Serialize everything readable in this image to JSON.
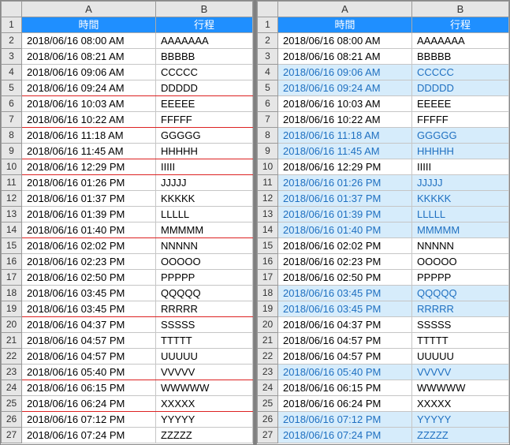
{
  "header": {
    "colA": "時間",
    "colB": "行程"
  },
  "colLabels": [
    "A",
    "B"
  ],
  "rows": [
    {
      "n": 2,
      "time": "2018/06/16 08:00 AM",
      "val": "AAAAAAA",
      "hl": false,
      "sep": false
    },
    {
      "n": 3,
      "time": "2018/06/16 08:21 AM",
      "val": "BBBBB",
      "hl": false,
      "sep": false
    },
    {
      "n": 4,
      "time": "2018/06/16 09:06 AM",
      "val": "CCCCC",
      "hl": true,
      "sep": false
    },
    {
      "n": 5,
      "time": "2018/06/16 09:24 AM",
      "val": "DDDDD",
      "hl": true,
      "sep": true
    },
    {
      "n": 6,
      "time": "2018/06/16 10:03 AM",
      "val": "EEEEE",
      "hl": false,
      "sep": false
    },
    {
      "n": 7,
      "time": "2018/06/16 10:22 AM",
      "val": "FFFFF",
      "hl": false,
      "sep": true
    },
    {
      "n": 8,
      "time": "2018/06/16 11:18 AM",
      "val": "GGGGG",
      "hl": true,
      "sep": false
    },
    {
      "n": 9,
      "time": "2018/06/16 11:45 AM",
      "val": "HHHHH",
      "hl": true,
      "sep": true
    },
    {
      "n": 10,
      "time": "2018/06/16 12:29 PM",
      "val": "IIIII",
      "hl": false,
      "sep": true
    },
    {
      "n": 11,
      "time": "2018/06/16 01:26 PM",
      "val": "JJJJJ",
      "hl": true,
      "sep": false
    },
    {
      "n": 12,
      "time": "2018/06/16 01:37 PM",
      "val": "KKKKK",
      "hl": true,
      "sep": false
    },
    {
      "n": 13,
      "time": "2018/06/16 01:39 PM",
      "val": "LLLLL",
      "hl": true,
      "sep": false
    },
    {
      "n": 14,
      "time": "2018/06/16 01:40 PM",
      "val": "MMMMM",
      "hl": true,
      "sep": true
    },
    {
      "n": 15,
      "time": "2018/06/16 02:02 PM",
      "val": "NNNNN",
      "hl": false,
      "sep": false
    },
    {
      "n": 16,
      "time": "2018/06/16 02:23 PM",
      "val": "OOOOO",
      "hl": false,
      "sep": false
    },
    {
      "n": 17,
      "time": "2018/06/16 02:50 PM",
      "val": "PPPPP",
      "hl": false,
      "sep": false
    },
    {
      "n": 18,
      "time": "2018/06/16 03:45 PM",
      "val": "QQQQQ",
      "hl": true,
      "sep": false
    },
    {
      "n": 19,
      "time": "2018/06/16 03:45 PM",
      "val": "RRRRR",
      "hl": true,
      "sep": true
    },
    {
      "n": 20,
      "time": "2018/06/16 04:37 PM",
      "val": "SSSSS",
      "hl": false,
      "sep": false
    },
    {
      "n": 21,
      "time": "2018/06/16 04:57 PM",
      "val": "TTTTT",
      "hl": false,
      "sep": false
    },
    {
      "n": 22,
      "time": "2018/06/16 04:57 PM",
      "val": "UUUUU",
      "hl": false,
      "sep": false
    },
    {
      "n": 23,
      "time": "2018/06/16 05:40 PM",
      "val": "VVVVV",
      "hl": true,
      "sep": true
    },
    {
      "n": 24,
      "time": "2018/06/16 06:15 PM",
      "val": "WWWWW",
      "hl": false,
      "sep": false
    },
    {
      "n": 25,
      "time": "2018/06/16 06:24 PM",
      "val": "XXXXX",
      "hl": false,
      "sep": true
    },
    {
      "n": 26,
      "time": "2018/06/16 07:12 PM",
      "val": "YYYYY",
      "hl": true,
      "sep": false
    },
    {
      "n": 27,
      "time": "2018/06/16 07:24 PM",
      "val": "ZZZZZ",
      "hl": true,
      "sep": false
    }
  ],
  "style": {
    "header_bg": "#1f8fff",
    "header_fg": "#ffffff",
    "hl_bg": "#d6ecfb",
    "hl_fg": "#1f70c1",
    "sep_color": "#d22",
    "grid_color": "#c6c6c6",
    "rowcol_bg": "#e6e6e6"
  }
}
